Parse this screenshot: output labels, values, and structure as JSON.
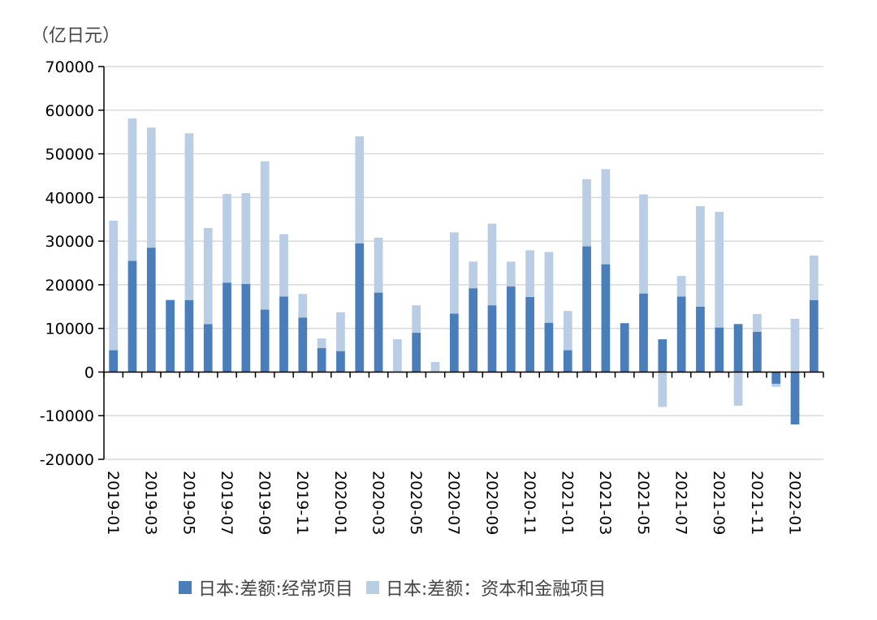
{
  "chart_data": {
    "type": "bar",
    "stacked": true,
    "unit_label": "（亿日元）",
    "ylim": [
      -20000,
      70000
    ],
    "yticks": [
      70000,
      60000,
      50000,
      40000,
      30000,
      20000,
      10000,
      0,
      -10000,
      -20000
    ],
    "grid": true,
    "legend_position": "bottom",
    "categories": [
      "2019-01",
      "2019-02",
      "2019-03",
      "2019-04",
      "2019-05",
      "2019-06",
      "2019-07",
      "2019-08",
      "2019-09",
      "2019-10",
      "2019-11",
      "2019-12",
      "2020-01",
      "2020-02",
      "2020-03",
      "2020-04",
      "2020-05",
      "2020-06",
      "2020-07",
      "2020-08",
      "2020-09",
      "2020-10",
      "2020-11",
      "2020-12",
      "2021-01",
      "2021-02",
      "2021-03",
      "2021-04",
      "2021-05",
      "2021-06",
      "2021-07",
      "2021-08",
      "2021-09",
      "2021-10",
      "2021-11",
      "2021-12",
      "2022-01",
      "2022-02"
    ],
    "tick_labels": [
      "2019-01",
      "",
      "2019-03",
      "",
      "2019-05",
      "",
      "2019-07",
      "",
      "2019-09",
      "",
      "2019-11",
      "",
      "2020-01",
      "",
      "2020-03",
      "",
      "2020-05",
      "",
      "2020-07",
      "",
      "2020-09",
      "",
      "2020-11",
      "",
      "2021-01",
      "",
      "2021-03",
      "",
      "2021-05",
      "",
      "2021-07",
      "",
      "2021-09",
      "",
      "2021-11",
      "",
      "2022-01",
      ""
    ],
    "series": [
      {
        "name": "日本:差额:经常项目",
        "color": "#4a7ebb",
        "values": [
          5000,
          25500,
          28500,
          16500,
          16500,
          11000,
          20500,
          20200,
          14300,
          17300,
          12500,
          5500,
          4800,
          29500,
          18200,
          0,
          9000,
          0,
          13400,
          19200,
          15300,
          19600,
          17200,
          11300,
          5000,
          28800,
          24700,
          11200,
          18000,
          7500,
          17300,
          15000,
          10200,
          11000,
          9200,
          -2700,
          -12000,
          16500
        ]
      },
      {
        "name": "日本:差额：资本和金融项目",
        "color": "#b9cde5",
        "values": [
          29700,
          32600,
          27500,
          0,
          38200,
          22000,
          20300,
          20800,
          34000,
          14300,
          5400,
          2200,
          8900,
          24500,
          12600,
          7500,
          6300,
          2300,
          18600,
          6100,
          18700,
          5700,
          10700,
          16200,
          9000,
          15400,
          21800,
          0,
          22700,
          -8000,
          4700,
          23000,
          26500,
          -7700,
          4100,
          -700,
          12200,
          10200
        ]
      }
    ]
  }
}
